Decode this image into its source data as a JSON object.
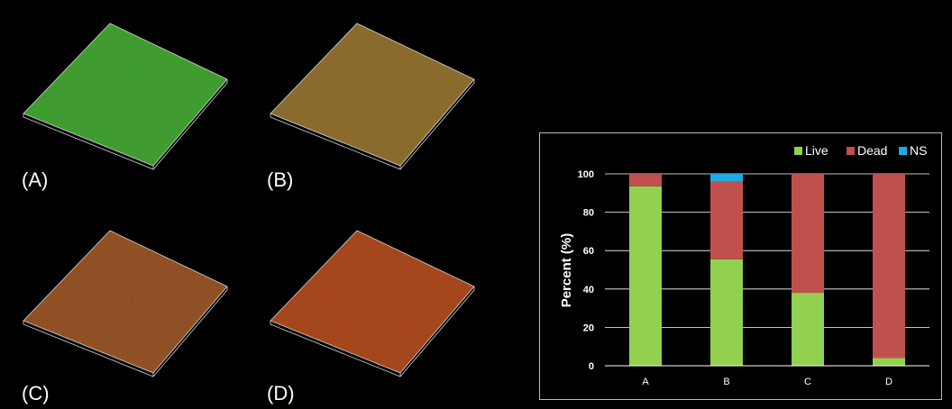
{
  "panels": [
    {
      "label": "(A)",
      "color": "#3f9a2a"
    },
    {
      "label": "(B)",
      "color": "#7a6a26"
    },
    {
      "label": "(C)",
      "color": "#8a3d1c"
    },
    {
      "label": "(D)",
      "color": "#9a3a18"
    }
  ],
  "chart_data": {
    "type": "bar",
    "stacked": true,
    "categories": [
      "A",
      "B",
      "C",
      "D"
    ],
    "series": [
      {
        "name": "Live",
        "color": "#92d050",
        "values": [
          93.5,
          55.5,
          38,
          4
        ]
      },
      {
        "name": "Dead",
        "color": "#c0504d",
        "values": [
          6.5,
          40.5,
          62,
          96
        ]
      },
      {
        "name": "NS",
        "color": "#1fa8e6",
        "values": [
          0,
          4,
          0,
          0
        ]
      }
    ],
    "ylabel": "Percent (%)",
    "ylim": [
      0,
      100
    ],
    "yticks": [
      0,
      20,
      40,
      60,
      80,
      100
    ],
    "grid": true,
    "legend_position": "top-right"
  }
}
